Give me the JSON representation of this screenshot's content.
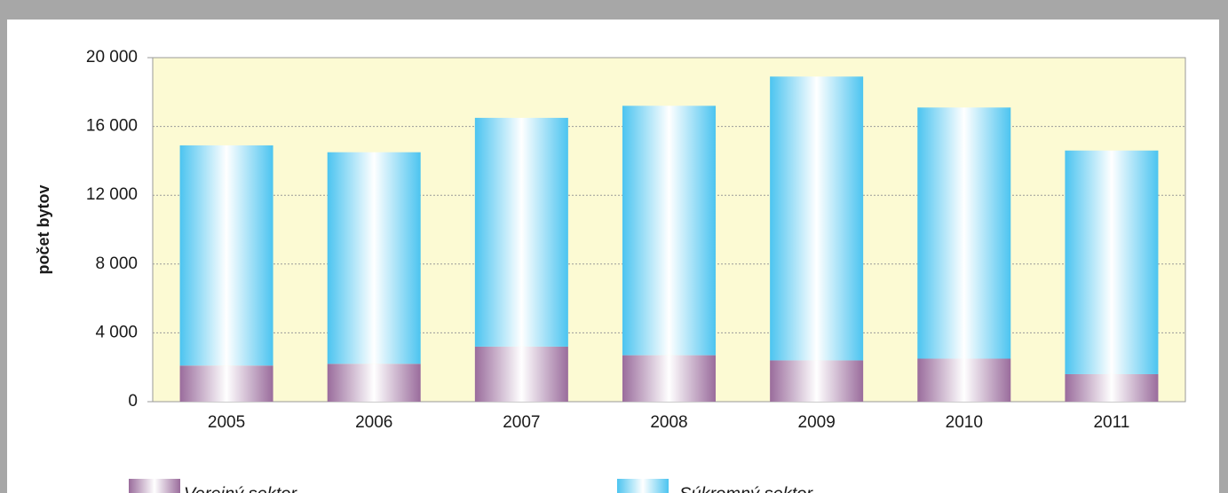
{
  "chart_data": {
    "type": "stacked_bar",
    "ylabel": "počet bytov",
    "categories": [
      "2005",
      "2006",
      "2007",
      "2008",
      "2009",
      "2010",
      "2011"
    ],
    "series": [
      {
        "name": "Verejný sektor",
        "color": "#9a6c9c",
        "values": [
          2100,
          2200,
          3200,
          2700,
          2400,
          2500,
          1600
        ]
      },
      {
        "name": "Súkromný sektor",
        "color": "#4cc4f0",
        "values": [
          12800,
          12300,
          13300,
          14500,
          16500,
          14600,
          13000
        ]
      }
    ],
    "ylim": [
      0,
      20000
    ],
    "yticks": [
      0,
      {
        "value": 4000,
        "label": "4 000"
      },
      {
        "value": 8000,
        "label": "8 000"
      },
      {
        "value": 12000,
        "label": "12 000"
      },
      {
        "value": 16000,
        "label": "16 000"
      },
      {
        "value": 20000,
        "label": "20 000"
      }
    ],
    "grid": true
  }
}
